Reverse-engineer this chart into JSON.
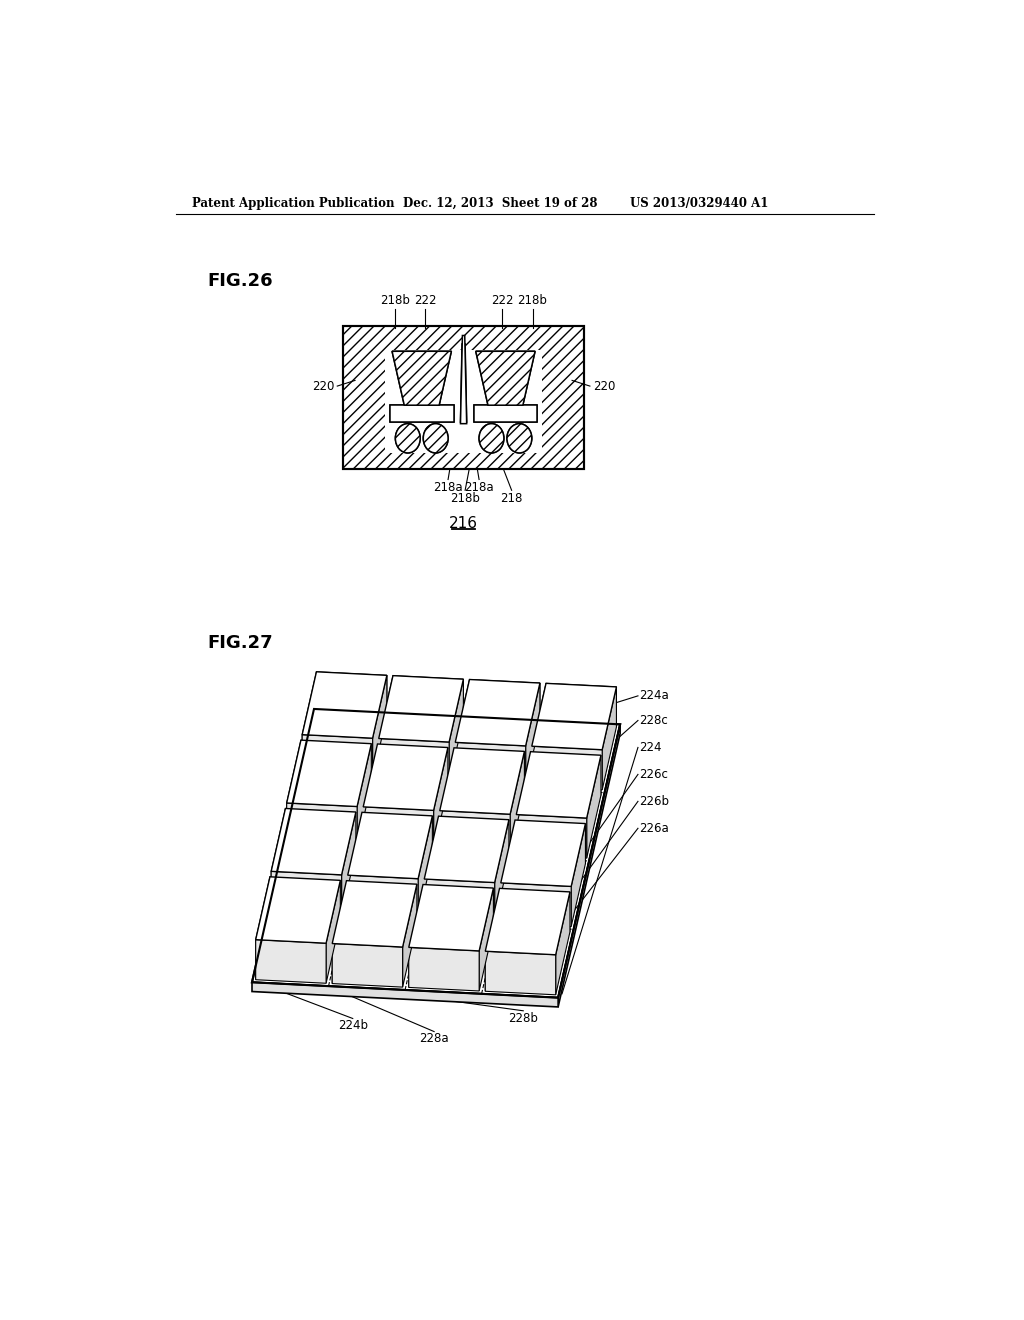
{
  "bg_color": "#ffffff",
  "header_left": "Patent Application Publication",
  "header_mid": "Dec. 12, 2013  Sheet 19 of 28",
  "header_right": "US 2013/0329440 A1",
  "fig26_label": "FIG.26",
  "fig27_label": "FIG.27"
}
